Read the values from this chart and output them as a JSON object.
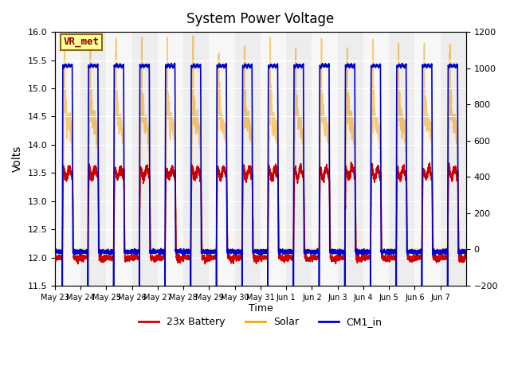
{
  "title": "System Power Voltage",
  "xlabel": "Time",
  "ylabel_left": "Volts",
  "ylim_left": [
    11.5,
    16.0
  ],
  "ylim_right": [
    -200,
    1200
  ],
  "background_color": "#ffffff",
  "plot_bg_color": "#dcdcdc",
  "grid_color": "#ffffff",
  "line_colors": {
    "battery": "#cc0000",
    "solar": "#ffa500",
    "cm1": "#0000cc"
  },
  "legend_labels": [
    "23x Battery",
    "Solar",
    "CM1_in"
  ],
  "annotation_text": "VR_met",
  "annotation_color": "#8b0000",
  "annotation_bg": "#ffff99",
  "annotation_border": "#8b6914",
  "x_tick_labels": [
    "May 23",
    "May 24",
    "May 25",
    "May 26",
    "May 27",
    "May 28",
    "May 29",
    "May 30",
    "May 31",
    "Jun 1",
    "Jun 2",
    "Jun 3",
    "Jun 4",
    "Jun 5",
    "Jun 6",
    "Jun 7"
  ],
  "num_days": 16,
  "pts_per_day": 288
}
